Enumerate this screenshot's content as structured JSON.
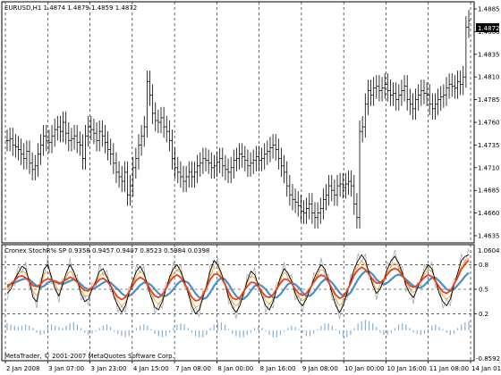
{
  "price_panel": {
    "symbol_info": "EURUSD,H1  1.4874 1.4879 1.4859 1.4872",
    "price_labels": [
      "1.4885",
      "1.4860",
      "1.4835",
      "1.4810",
      "1.4785",
      "1.4760",
      "1.4735",
      "1.4710",
      "1.4685",
      "1.4660",
      "1.4635"
    ],
    "current_price": "1.4872",
    "colors": {
      "bars": "#000000",
      "grid": "#000000",
      "price_badge_bg": "#000000",
      "price_badge_text": "#ffffff"
    }
  },
  "indicator_panel": {
    "title": "Cronex StochR% SP 0.9358 0.9457 0.9407 0.8523 0.5984 0.0398",
    "level_labels": [
      "0.8",
      "0.5",
      "0.2"
    ],
    "top_value": "1.0604",
    "bottom_value": "-0.8592",
    "colors": {
      "black_line": "#000000",
      "gray_line": "#a0a0a0",
      "orange_line": "#f5a623",
      "red_line": "#e8401c",
      "blue_line": "#4a8fc9",
      "histogram": "#7fb3de",
      "grid": "#000000"
    }
  },
  "copyright": "MetaTrader, © 2001-2007 MetaQuotes Software Corp.",
  "time_labels": [
    "2 Jan 2008",
    "3 Jan 07:00",
    "3 Jan 23:00",
    "4 Jan 15:00",
    "7 Jan 08:00",
    "8 Jan 00:00",
    "8 Jan 16:00",
    "9 Jan 08:00",
    "10 Jan 00:00",
    "10 Jan 16:00",
    "11 Jan 08:00",
    "14 Jan 01:00"
  ],
  "chart_data": {
    "type": "line",
    "price_series": {
      "name": "EURUSD,H1",
      "ylim": [
        1.4635,
        1.4885
      ],
      "close": [
        1.474,
        1.4742,
        1.4735,
        1.4733,
        1.473,
        1.4725,
        1.472,
        1.4728,
        1.4715,
        1.4708,
        1.4712,
        1.4725,
        1.4735,
        1.4745,
        1.474,
        1.4738,
        1.4745,
        1.4752,
        1.4755,
        1.475,
        1.476,
        1.4748,
        1.474,
        1.4742,
        1.4745,
        1.4738,
        1.4735,
        1.472,
        1.4745,
        1.4755,
        1.4752,
        1.4748,
        1.474,
        1.475,
        1.4745,
        1.4738,
        1.473,
        1.4725,
        1.4715,
        1.4705,
        1.47,
        1.4695,
        1.4705,
        1.468,
        1.469,
        1.471,
        1.472,
        1.4735,
        1.4745,
        1.4755,
        1.4805,
        1.479,
        1.477,
        1.4762,
        1.476,
        1.4765,
        1.4755,
        1.475,
        1.474,
        1.472,
        1.471,
        1.4705,
        1.47,
        1.4695,
        1.47,
        1.4705,
        1.47,
        1.4705,
        1.4712,
        1.4715,
        1.472,
        1.4718,
        1.4715,
        1.471,
        1.4712,
        1.4716,
        1.472,
        1.4712,
        1.4708,
        1.4705,
        1.471,
        1.4718,
        1.472,
        1.4725,
        1.4722,
        1.4718,
        1.4712,
        1.4715,
        1.4718,
        1.4722,
        1.4718,
        1.472,
        1.4725,
        1.4728,
        1.4732,
        1.4735,
        1.473,
        1.472,
        1.4712,
        1.4705,
        1.469,
        1.468,
        1.4675,
        1.4672,
        1.4668,
        1.4662,
        1.466,
        1.4665,
        1.467,
        1.466,
        1.4655,
        1.466,
        1.4665,
        1.4675,
        1.468,
        1.469,
        1.4685,
        1.468,
        1.469,
        1.4692,
        1.4688,
        1.4692,
        1.4695,
        1.469,
        1.467,
        1.4655,
        1.475,
        1.4755,
        1.478,
        1.4795,
        1.479,
        1.4798,
        1.48,
        1.4795,
        1.4798,
        1.4802,
        1.4795,
        1.479,
        1.4792,
        1.4785,
        1.479,
        1.4795,
        1.48,
        1.4785,
        1.478,
        1.4775,
        1.4785,
        1.479,
        1.4795,
        1.4792,
        1.479,
        1.478,
        1.4775,
        1.478,
        1.4785,
        1.4788,
        1.479,
        1.4798,
        1.4802,
        1.48,
        1.4798,
        1.4805,
        1.4802,
        1.481,
        1.4865,
        1.4872
      ]
    },
    "indicator_series": [
      {
        "name": "black",
        "values": [
          0.45,
          0.5,
          0.62,
          0.7,
          0.78,
          0.75,
          0.6,
          0.4,
          0.35,
          0.55,
          0.75,
          0.8,
          0.65,
          0.5,
          0.42,
          0.55,
          0.7,
          0.8,
          0.72,
          0.6,
          0.45,
          0.35,
          0.38,
          0.5,
          0.6,
          0.72,
          0.75,
          0.65,
          0.55,
          0.4,
          0.3,
          0.22,
          0.3,
          0.45,
          0.6,
          0.72,
          0.78,
          0.7,
          0.55,
          0.4,
          0.28,
          0.25,
          0.35,
          0.5,
          0.65,
          0.75,
          0.8,
          0.72,
          0.6,
          0.45,
          0.3,
          0.2,
          0.25,
          0.4,
          0.55,
          0.72,
          0.85,
          0.8,
          0.7,
          0.55,
          0.4,
          0.28,
          0.22,
          0.3,
          0.45,
          0.6,
          0.72,
          0.68,
          0.55,
          0.42,
          0.3,
          0.25,
          0.35,
          0.5,
          0.65,
          0.75,
          0.7,
          0.6,
          0.45,
          0.35,
          0.3,
          0.38,
          0.5,
          0.62,
          0.72,
          0.8,
          0.75,
          0.6,
          0.45,
          0.3,
          0.22,
          0.3,
          0.45,
          0.6,
          0.75,
          0.85,
          0.92,
          0.85,
          0.7,
          0.55,
          0.45,
          0.5,
          0.62,
          0.75,
          0.85,
          0.9,
          0.82,
          0.7,
          0.55,
          0.45,
          0.4,
          0.5,
          0.62,
          0.72,
          0.8,
          0.75,
          0.6,
          0.45,
          0.35,
          0.3,
          0.38,
          0.55,
          0.7,
          0.85,
          0.9,
          0.92
        ]
      },
      {
        "name": "orange",
        "values": [
          0.5,
          0.55,
          0.6,
          0.68,
          0.72,
          0.7,
          0.62,
          0.48,
          0.42,
          0.52,
          0.68,
          0.72,
          0.65,
          0.55,
          0.48,
          0.55,
          0.65,
          0.72,
          0.68,
          0.6,
          0.5,
          0.42,
          0.42,
          0.5,
          0.58,
          0.66,
          0.7,
          0.65,
          0.56,
          0.45,
          0.36,
          0.3,
          0.34,
          0.45,
          0.56,
          0.66,
          0.72,
          0.68,
          0.58,
          0.46,
          0.36,
          0.32,
          0.38,
          0.5,
          0.62,
          0.7,
          0.74,
          0.7,
          0.6,
          0.48,
          0.36,
          0.28,
          0.3,
          0.4,
          0.52,
          0.66,
          0.76,
          0.76,
          0.68,
          0.56,
          0.44,
          0.34,
          0.3,
          0.34,
          0.46,
          0.58,
          0.66,
          0.64,
          0.56,
          0.46,
          0.36,
          0.32,
          0.38,
          0.5,
          0.62,
          0.7,
          0.68,
          0.6,
          0.48,
          0.4,
          0.36,
          0.4,
          0.5,
          0.6,
          0.68,
          0.74,
          0.72,
          0.62,
          0.5,
          0.38,
          0.3,
          0.34,
          0.46,
          0.58,
          0.7,
          0.78,
          0.84,
          0.8,
          0.7,
          0.58,
          0.5,
          0.52,
          0.6,
          0.7,
          0.78,
          0.82,
          0.78,
          0.68,
          0.58,
          0.5,
          0.46,
          0.5,
          0.6,
          0.68,
          0.74,
          0.72,
          0.62,
          0.5,
          0.42,
          0.38,
          0.42,
          0.54,
          0.66,
          0.78,
          0.84,
          0.88
        ]
      },
      {
        "name": "blue",
        "values": [
          0.55,
          0.56,
          0.58,
          0.6,
          0.62,
          0.63,
          0.62,
          0.58,
          0.54,
          0.52,
          0.54,
          0.58,
          0.6,
          0.6,
          0.58,
          0.56,
          0.58,
          0.6,
          0.62,
          0.6,
          0.56,
          0.52,
          0.5,
          0.5,
          0.52,
          0.55,
          0.58,
          0.6,
          0.58,
          0.54,
          0.5,
          0.45,
          0.42,
          0.42,
          0.45,
          0.5,
          0.55,
          0.58,
          0.58,
          0.55,
          0.5,
          0.45,
          0.42,
          0.42,
          0.45,
          0.5,
          0.56,
          0.6,
          0.6,
          0.58,
          0.52,
          0.45,
          0.4,
          0.38,
          0.4,
          0.46,
          0.54,
          0.6,
          0.64,
          0.62,
          0.56,
          0.48,
          0.42,
          0.38,
          0.38,
          0.42,
          0.48,
          0.54,
          0.56,
          0.54,
          0.5,
          0.44,
          0.4,
          0.4,
          0.44,
          0.5,
          0.56,
          0.58,
          0.56,
          0.52,
          0.46,
          0.42,
          0.42,
          0.46,
          0.52,
          0.58,
          0.62,
          0.62,
          0.58,
          0.52,
          0.46,
          0.42,
          0.42,
          0.46,
          0.54,
          0.62,
          0.68,
          0.72,
          0.72,
          0.68,
          0.62,
          0.58,
          0.56,
          0.58,
          0.62,
          0.66,
          0.68,
          0.66,
          0.62,
          0.58,
          0.54,
          0.52,
          0.52,
          0.55,
          0.6,
          0.64,
          0.64,
          0.6,
          0.55,
          0.5,
          0.48,
          0.5,
          0.55,
          0.6,
          0.66,
          0.7
        ]
      },
      {
        "name": "histogram",
        "values": [
          0.06,
          0.05,
          0.04,
          0.03,
          0.04,
          0.05,
          0.04,
          0.02,
          -0.02,
          -0.04,
          -0.03,
          0.03,
          0.05,
          0.04,
          0.03,
          0.02,
          0.04,
          0.06,
          0.07,
          0.05,
          0.02,
          -0.02,
          -0.04,
          -0.03,
          -0.01,
          0.02,
          0.04,
          0.05,
          0.03,
          -0.01,
          -0.03,
          -0.05,
          -0.06,
          -0.05,
          -0.02,
          0.02,
          0.04,
          0.05,
          0.04,
          0.01,
          -0.03,
          -0.05,
          -0.06,
          -0.05,
          -0.02,
          0.02,
          0.05,
          0.06,
          0.05,
          0.02,
          -0.02,
          -0.05,
          -0.06,
          -0.06,
          -0.04,
          0.02,
          0.05,
          0.07,
          0.07,
          0.05,
          0.01,
          -0.03,
          -0.05,
          -0.06,
          -0.06,
          -0.04,
          -0.02,
          0.02,
          0.03,
          0.02,
          -0.01,
          -0.04,
          -0.06,
          -0.06,
          -0.04,
          -0.01,
          0.02,
          0.04,
          0.03,
          0.01,
          -0.02,
          -0.05,
          -0.05,
          -0.03,
          0.01,
          0.04,
          0.06,
          0.06,
          0.04,
          0.01,
          -0.03,
          -0.05,
          -0.06,
          -0.04,
          0.02,
          0.06,
          0.08,
          0.09,
          0.08,
          0.06,
          0.03,
          -0.02,
          -0.04,
          -0.04,
          -0.02,
          0.02,
          0.05,
          0.06,
          0.05,
          0.02,
          -0.02,
          -0.03,
          -0.04,
          -0.03,
          0.01,
          0.04,
          0.05,
          0.03,
          0.01,
          -0.02,
          -0.04,
          -0.03,
          0.02,
          0.05,
          0.07,
          0.08
        ]
      }
    ],
    "indicator_ylim": [
      -0.8592,
      1.0604
    ],
    "levels": [
      0.8,
      0.5,
      0.2
    ],
    "grid": true
  }
}
